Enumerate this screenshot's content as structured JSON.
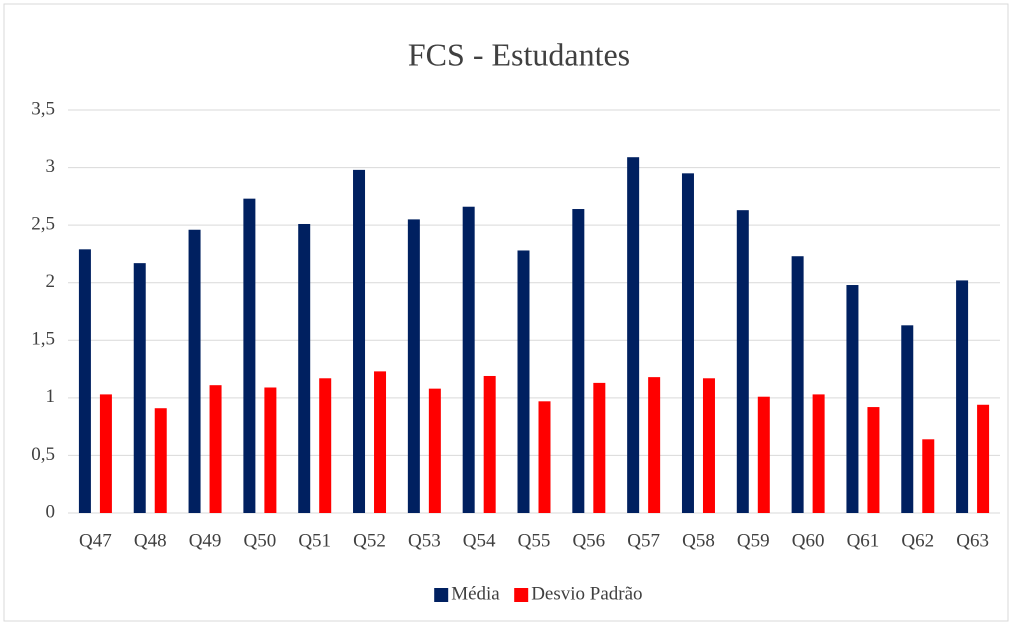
{
  "chart_data": {
    "type": "bar",
    "title": "FCS - Estudantes",
    "categories": [
      "Q47",
      "Q48",
      "Q49",
      "Q50",
      "Q51",
      "Q52",
      "Q53",
      "Q54",
      "Q55",
      "Q56",
      "Q57",
      "Q58",
      "Q59",
      "Q60",
      "Q61",
      "Q62",
      "Q63"
    ],
    "series": [
      {
        "name": "Média",
        "color": "#002060",
        "values": [
          2.29,
          2.17,
          2.46,
          2.73,
          2.51,
          2.98,
          2.55,
          2.66,
          2.28,
          2.64,
          3.09,
          2.95,
          2.63,
          2.23,
          1.98,
          1.63,
          2.02
        ]
      },
      {
        "name": "Desvio Padrão",
        "color": "#ff0000",
        "values": [
          1.03,
          0.91,
          1.11,
          1.09,
          1.17,
          1.23,
          1.08,
          1.19,
          0.97,
          1.13,
          1.18,
          1.17,
          1.01,
          1.03,
          0.92,
          0.64,
          0.94
        ]
      }
    ],
    "ylim": [
      0,
      3.5
    ],
    "yticks": [
      0,
      {
        "value": 0.5,
        "label": "0,5"
      },
      1,
      {
        "value": 1.5,
        "label": "1,5"
      },
      2,
      {
        "value": 2.5,
        "label": "2,5"
      },
      3,
      {
        "value": 3.5,
        "label": "3,5"
      }
    ],
    "grid": true,
    "legend": "bottom"
  }
}
